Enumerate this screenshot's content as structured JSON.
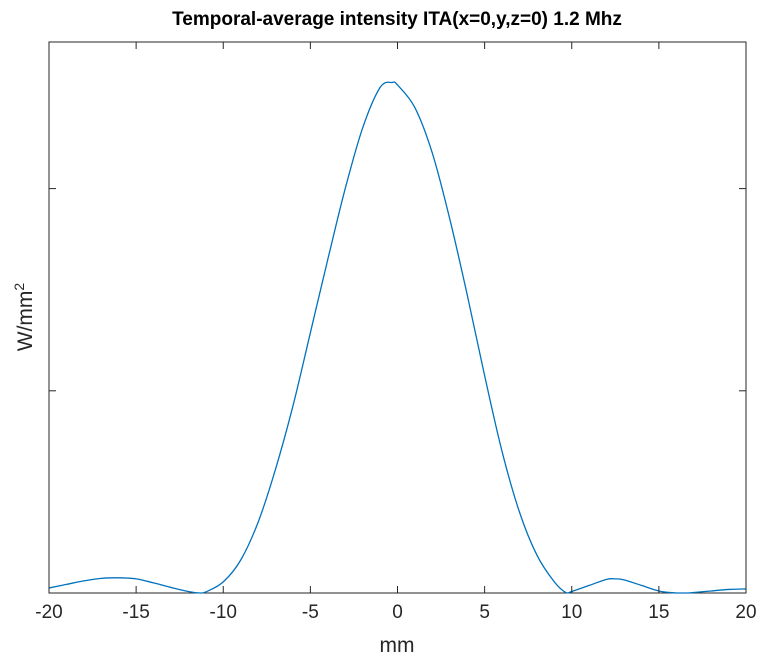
{
  "chart_data": {
    "type": "line",
    "title": "Temporal-average intensity ITA(x=0,y,z=0) 1.2 Mhz",
    "xlabel": "mm",
    "ylabel": "W/mm",
    "ylabel_superscript": "2",
    "xlim": [
      -20,
      20
    ],
    "ylim": [
      0,
      1.09
    ],
    "xticks": [
      -20,
      -15,
      -10,
      -5,
      0,
      5,
      10,
      15,
      20
    ],
    "xtick_labels": [
      "-20",
      "-15",
      "-10",
      "-5",
      "0",
      "5",
      "10",
      "15",
      "20"
    ],
    "yticks": [
      0,
      0.4,
      0.8
    ],
    "ytick_labels": [
      "",
      "",
      ""
    ],
    "grid": false,
    "series": [
      {
        "color": "#0072BD",
        "x": [
          -20,
          -19,
          -18,
          -17,
          -16,
          -15,
          -14,
          -13,
          -12,
          -11.3,
          -11,
          -10,
          -9,
          -8,
          -7,
          -6,
          -5,
          -4,
          -3,
          -2,
          -1,
          -0.3,
          0,
          1,
          2,
          3,
          4,
          5,
          6,
          7,
          8,
          9,
          9.7,
          10,
          11,
          12,
          12.5,
          13,
          14,
          15,
          16,
          16.7,
          17,
          18,
          19,
          20
        ],
        "y": [
          0.01,
          0.017,
          0.024,
          0.029,
          0.03,
          0.028,
          0.02,
          0.011,
          0.003,
          0.0,
          0.002,
          0.022,
          0.065,
          0.14,
          0.245,
          0.37,
          0.515,
          0.66,
          0.8,
          0.92,
          1.0,
          1.01,
          1.005,
          0.96,
          0.87,
          0.74,
          0.59,
          0.43,
          0.28,
          0.16,
          0.075,
          0.022,
          0.0,
          0.003,
          0.015,
          0.027,
          0.028,
          0.026,
          0.015,
          0.004,
          0.0,
          0.0,
          0.001,
          0.004,
          0.007,
          0.008
        ]
      }
    ]
  }
}
